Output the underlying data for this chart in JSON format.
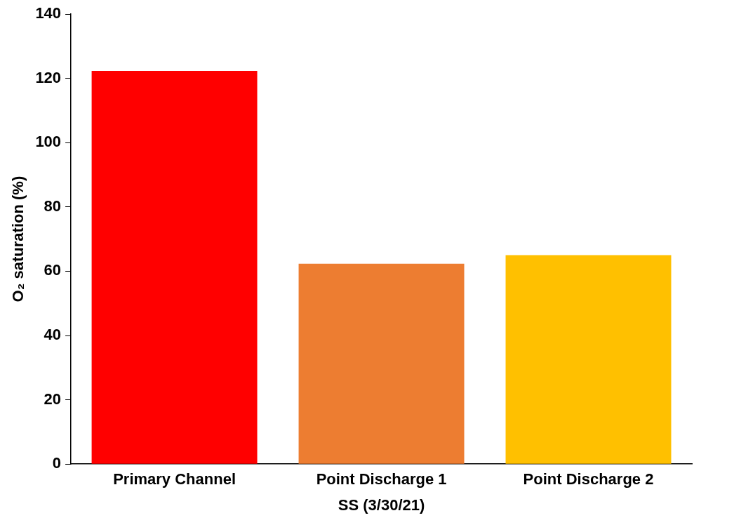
{
  "chart_data": {
    "type": "bar",
    "xlabel": "SS (3/30/21)",
    "ylabel": "O₂ saturation (%)",
    "categories": [
      "Primary Channel",
      "Point Discharge 1",
      "Point Discharge 2"
    ],
    "values": [
      122.3,
      62.3,
      65
    ],
    "colors": [
      "#ff0000",
      "#ed7d31",
      "#ffc000"
    ],
    "ylim": [
      0,
      140
    ],
    "yticks": [
      0,
      20,
      40,
      60,
      80,
      100,
      120,
      140
    ],
    "grid": false,
    "legend": false
  }
}
